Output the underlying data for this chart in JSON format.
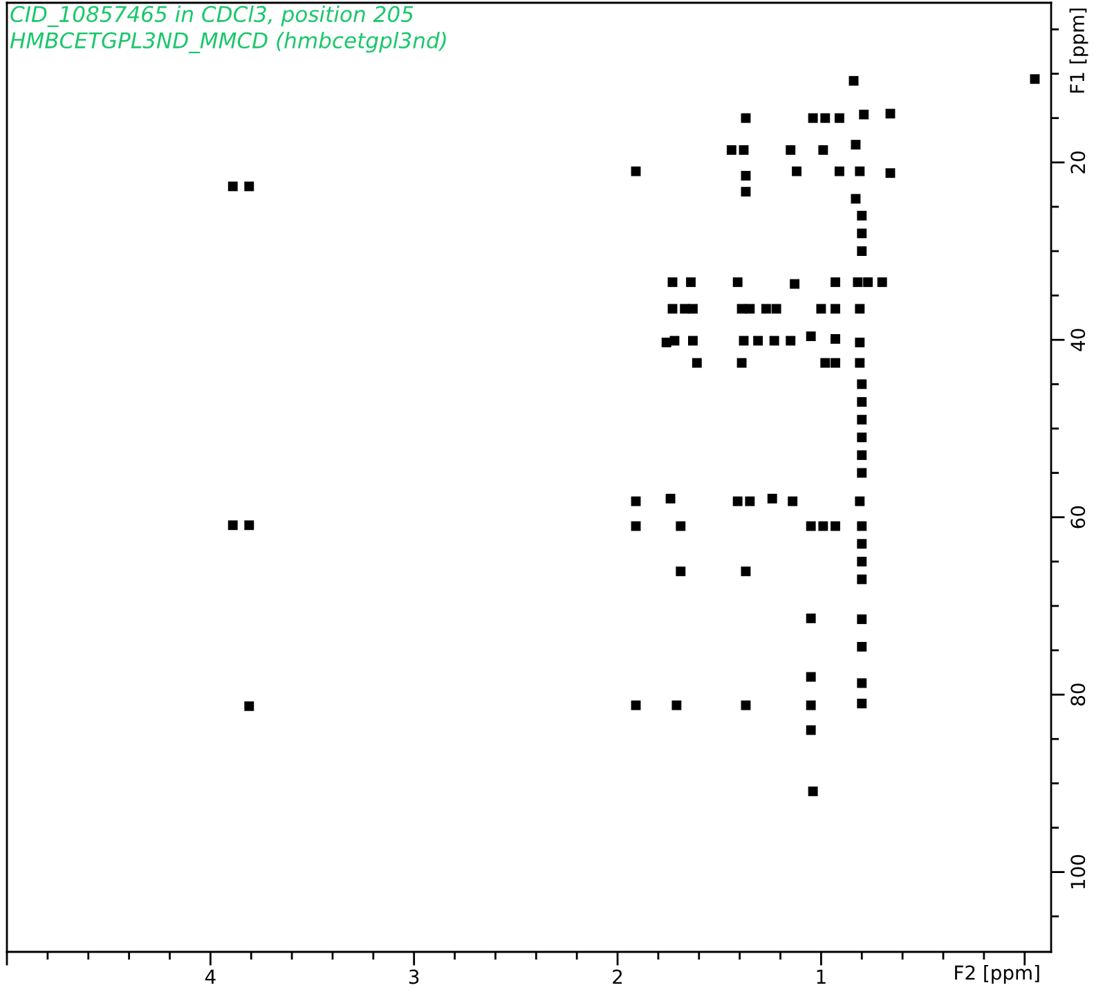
{
  "chart_data": {
    "type": "scatter",
    "title": "CID_10857465 in CDCl3, position 205",
    "subtitle": "HMBCETGPL3ND_MMCD (hmbcetgpl3nd)",
    "xlabel": "F2 [ppm]",
    "ylabel": "F1 [ppm]",
    "marker": "square",
    "xlim": [
      5.0,
      -0.13
    ],
    "xticks": [
      {
        "value": 5,
        "label": null
      },
      4,
      3,
      2,
      1,
      {
        "value": 0,
        "label": null
      }
    ],
    "ylim": [
      109,
      2
    ],
    "yticks": [
      20,
      40,
      60,
      80,
      100
    ],
    "series": [
      {
        "color": "#000000",
        "x": [
          0.84,
          -0.05,
          1.37,
          1.04,
          0.98,
          0.91,
          0.79,
          0.66,
          1.44,
          1.38,
          1.15,
          0.99,
          0.83,
          1.91,
          1.37,
          1.37,
          1.12,
          0.91,
          0.81,
          0.66,
          0.83,
          3.89,
          3.81,
          3.89,
          3.81,
          3.81,
          1.73,
          1.64,
          1.41,
          1.13,
          0.93,
          0.82,
          0.77,
          0.7,
          1.73,
          1.67,
          1.63,
          1.39,
          1.35,
          1.27,
          1.22,
          1.0,
          0.93,
          0.81,
          1.76,
          1.72,
          1.63,
          1.38,
          1.31,
          1.23,
          1.15,
          1.05,
          0.93,
          0.81,
          1.61,
          1.39,
          0.98,
          0.93,
          0.81,
          1.91,
          1.74,
          1.41,
          1.35,
          1.24,
          1.14,
          0.81,
          1.91,
          1.69,
          1.05,
          0.99,
          0.93,
          0.8,
          1.69,
          1.37,
          1.05,
          1.91,
          1.71,
          1.37,
          1.05,
          0.8,
          1.04,
          0.8,
          0.8,
          0.8,
          0.8,
          0.8,
          0.8,
          0.8,
          0.8,
          0.8,
          0.8,
          0.8,
          0.8,
          0.8,
          0.8,
          0.8,
          1.05,
          1.05
        ],
        "values": [
          10.8,
          10.6,
          15.0,
          15.0,
          15.0,
          15.0,
          14.6,
          14.5,
          18.6,
          18.6,
          18.6,
          18.6,
          18.0,
          21.0,
          21.5,
          23.3,
          21.0,
          21.0,
          21.0,
          21.2,
          24.1,
          22.7,
          22.7,
          60.9,
          60.9,
          81.3,
          33.5,
          33.5,
          33.5,
          33.7,
          33.5,
          33.5,
          33.5,
          33.5,
          36.5,
          36.5,
          36.5,
          36.5,
          36.5,
          36.5,
          36.5,
          36.5,
          36.5,
          36.5,
          40.3,
          40.1,
          40.1,
          40.1,
          40.1,
          40.1,
          40.1,
          39.6,
          39.9,
          40.3,
          42.6,
          42.6,
          42.6,
          42.6,
          42.6,
          58.2,
          57.9,
          58.2,
          58.2,
          57.9,
          58.2,
          58.2,
          61.0,
          61.0,
          61.0,
          61.0,
          61.0,
          61.0,
          66.1,
          66.1,
          71.4,
          81.2,
          81.2,
          81.2,
          81.2,
          81.0,
          90.9,
          26,
          28,
          30,
          45,
          47,
          49,
          51,
          53,
          55,
          63,
          65,
          67,
          71.5,
          74.6,
          78.7,
          78,
          84
        ]
      }
    ]
  }
}
